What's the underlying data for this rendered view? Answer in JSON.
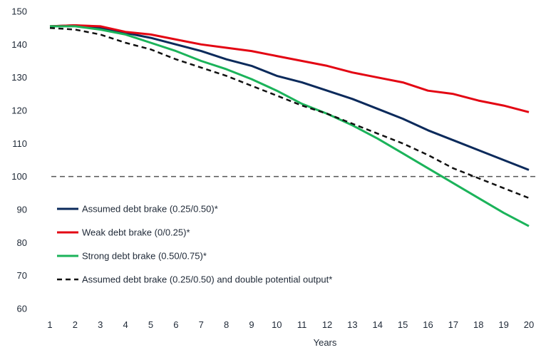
{
  "chart_data": {
    "type": "line",
    "title": "",
    "xlabel": "Years",
    "ylabel": "",
    "x": [
      1,
      2,
      3,
      4,
      5,
      6,
      7,
      8,
      9,
      10,
      11,
      12,
      13,
      14,
      15,
      16,
      17,
      18,
      19,
      20
    ],
    "xlim": [
      1,
      20
    ],
    "ylim": [
      60,
      150
    ],
    "yticks": [
      60,
      70,
      80,
      90,
      100,
      110,
      120,
      130,
      140,
      150
    ],
    "grid": false,
    "legend_position": "bottom-left",
    "reference_line": {
      "y": 100,
      "style": "dashed",
      "color": "#555555"
    },
    "series": [
      {
        "name": "Assumed debt brake (0.25/0.50)*",
        "color": "#0b2a5b",
        "style": "solid",
        "values": [
          145.5,
          145.8,
          145.0,
          143.5,
          142.0,
          140.0,
          138.0,
          135.5,
          133.5,
          130.5,
          128.5,
          126.0,
          123.5,
          120.5,
          117.5,
          114.0,
          111.0,
          108.0,
          105.0,
          102.0
        ]
      },
      {
        "name": "Weak debt brake (0/0.25)*",
        "color": "#e30613",
        "style": "solid",
        "values": [
          145.5,
          145.8,
          145.5,
          143.8,
          143.0,
          141.5,
          140.0,
          139.0,
          138.0,
          136.5,
          135.0,
          133.5,
          131.5,
          130.0,
          128.5,
          126.0,
          125.0,
          123.0,
          121.5,
          119.5
        ]
      },
      {
        "name": "Strong debt brake (0.50/0.75)*",
        "color": "#1bb35a",
        "style": "solid",
        "values": [
          145.5,
          145.5,
          144.5,
          143.0,
          140.5,
          138.0,
          135.0,
          132.5,
          129.5,
          126.0,
          122.0,
          119.0,
          115.5,
          111.5,
          107.0,
          102.5,
          98.0,
          93.5,
          89.0,
          85.0
        ]
      },
      {
        "name": "Assumed debt brake (0.25/0.50) and double potential output*",
        "color": "#111111",
        "style": "dashed",
        "values": [
          145.0,
          144.5,
          143.0,
          140.5,
          138.5,
          135.5,
          133.0,
          130.5,
          127.5,
          124.5,
          121.5,
          119.0,
          116.0,
          113.0,
          110.0,
          106.5,
          102.5,
          99.5,
          96.5,
          93.5
        ]
      }
    ]
  }
}
